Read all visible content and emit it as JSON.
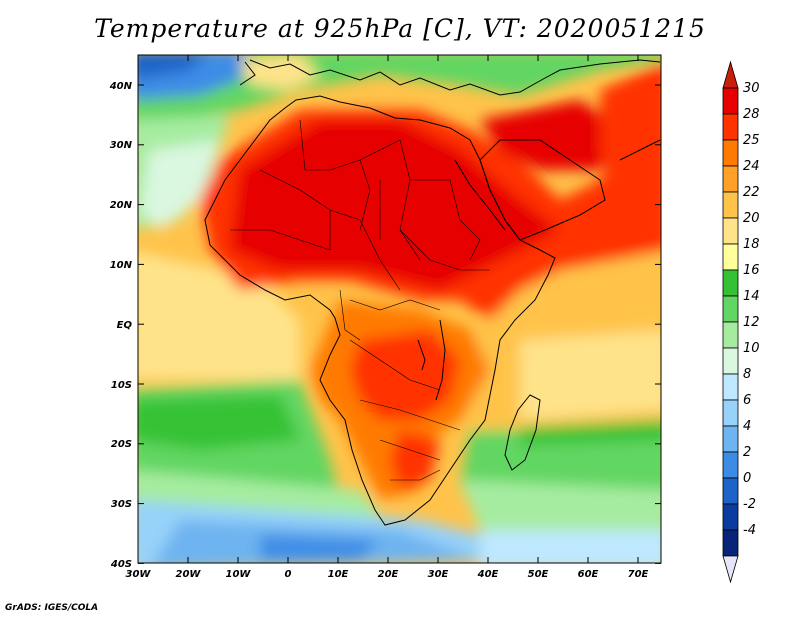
{
  "title": "Temperature at 925hPa [C], VT: 2020051215",
  "footer": "GrADS: IGES/COLA",
  "map": {
    "lat_labels": [
      "40N",
      "30N",
      "20N",
      "10N",
      "EQ",
      "10S",
      "20S",
      "30S",
      "40S"
    ],
    "lon_labels": [
      "30W",
      "20W",
      "10W",
      "0",
      "10E",
      "20E",
      "30E",
      "40E",
      "50E",
      "60E",
      "70E"
    ],
    "lat_range": [
      -40,
      45
    ],
    "lon_range": [
      -30,
      75
    ]
  },
  "colorbar": {
    "labels": [
      "30",
      "28",
      "25",
      "24",
      "22",
      "20",
      "18",
      "16",
      "14",
      "12",
      "10",
      "8",
      "6",
      "4",
      "2",
      "0",
      "-2",
      "-4"
    ],
    "colors": [
      "#e60000",
      "#ff3300",
      "#ff7a00",
      "#ffa128",
      "#ffc34a",
      "#ffe38a",
      "#ffff9c",
      "#34c234",
      "#62d662",
      "#a6eca0",
      "#daf7e0",
      "#bde8ff",
      "#96d2fa",
      "#6eb4f0",
      "#3c8ce6",
      "#1e64c8",
      "#0a3ca0",
      "#082478"
    ],
    "top_arrow_color": "#c81e0a",
    "bottom_arrow_color": "#e6e6fa"
  }
}
